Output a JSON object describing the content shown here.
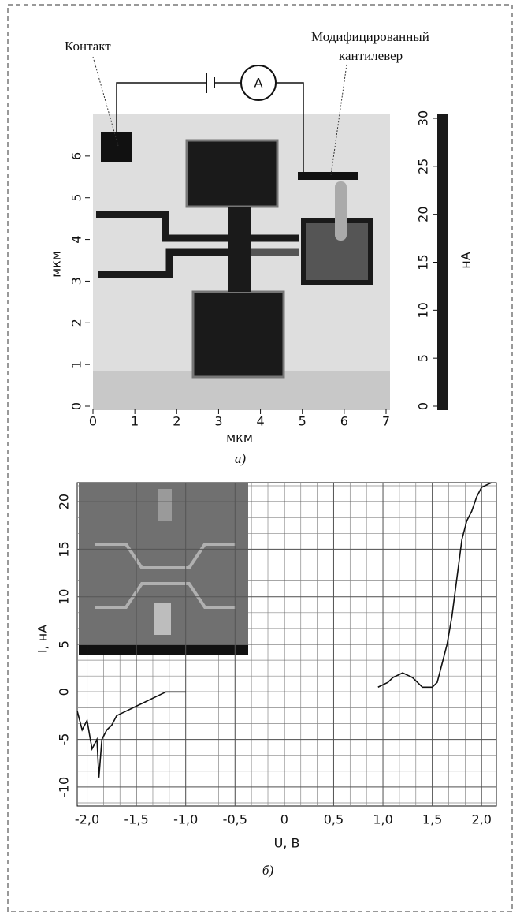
{
  "chart_data": [
    {
      "type": "image",
      "xlabel": "мкм",
      "ylabel": "мкм",
      "caption": "а)",
      "xlim": [
        0,
        7
      ],
      "xticks": [
        0,
        1,
        2,
        3,
        4,
        5,
        6,
        7
      ],
      "ylim": [
        0,
        7
      ],
      "yticks": [
        0,
        1,
        2,
        3,
        4,
        5,
        6
      ],
      "colorbar": {
        "label": "нА",
        "lim": [
          0,
          30
        ],
        "ticks": [
          0,
          5,
          10,
          15,
          20,
          25,
          30
        ]
      },
      "annotations": [
        "Контакт",
        "Модифицированный",
        "кантилевер",
        "A"
      ]
    },
    {
      "type": "line",
      "xlabel": "U, В",
      "ylabel": "I, нА",
      "caption": "б)",
      "xlim": [
        -2.1,
        2.15
      ],
      "xticks": [
        {
          "value": -2,
          "label": "-2,0"
        },
        {
          "value": -1.5,
          "label": "-1,5"
        },
        {
          "value": -1,
          "label": "-1,0"
        },
        {
          "value": -0.5,
          "label": "-0,5"
        },
        0,
        {
          "value": 0.5,
          "label": "0,5"
        },
        {
          "value": 1,
          "label": "1,0"
        },
        {
          "value": 1.5,
          "label": "1,5"
        },
        {
          "value": 2,
          "label": "2,0"
        }
      ],
      "ylim": [
        -12,
        22
      ],
      "yticks": [
        -10,
        -5,
        0,
        5,
        10,
        15,
        20
      ],
      "grid": true,
      "series": [
        {
          "color": "#111111",
          "x": [
            -2.1,
            -2.05,
            -2.0,
            -1.95,
            -1.9,
            -1.88,
            -1.85,
            -1.8,
            -1.75,
            -1.7,
            -1.6,
            -1.5,
            -1.4,
            -1.3,
            -1.2,
            -1.0,
            -0.95,
            0.95,
            1.05,
            1.1,
            1.2,
            1.3,
            1.35,
            1.4,
            1.5,
            1.55,
            1.6,
            1.65,
            1.7,
            1.75,
            1.8,
            1.85,
            1.9,
            1.95,
            2.0,
            2.1
          ],
          "values": [
            -2,
            -4,
            -3,
            -6,
            -5,
            -9,
            -5,
            -4,
            -3.5,
            -2.5,
            -2,
            -1.5,
            -1,
            -0.5,
            0,
            0,
            null,
            0.5,
            1,
            1.5,
            2,
            1.5,
            1,
            0.5,
            0.5,
            1,
            3,
            5,
            8,
            12,
            16,
            18,
            19,
            20.5,
            21.5,
            22
          ]
        }
      ]
    }
  ]
}
